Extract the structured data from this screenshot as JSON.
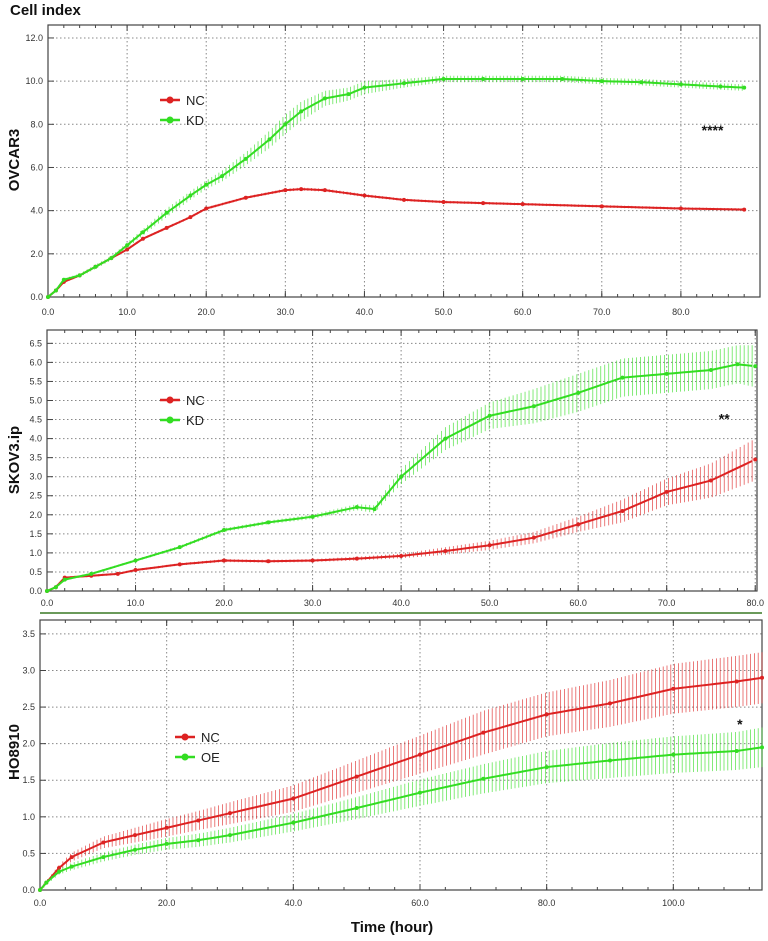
{
  "chart_data": {
    "type": "line",
    "title": "Cell index",
    "xlabel": "Time (hour)",
    "colors": {
      "NC": "#dd2222",
      "green": "#33dd22",
      "grid": "#888888",
      "separator": "#6a9a5a"
    },
    "grid": true,
    "legend_position": "top-left",
    "panels": [
      {
        "ylabel": "OVCAR3",
        "xlim": [
          0,
          90
        ],
        "ylim": [
          0,
          12.6
        ],
        "xticks": [
          "0.0",
          "10.0",
          "20.0",
          "30.0",
          "40.0",
          "50.0",
          "60.0",
          "70.0",
          "80.0"
        ],
        "xtick_values": [
          0,
          10,
          20,
          30,
          40,
          50,
          60,
          70,
          80
        ],
        "yticks": [
          "0.0",
          "2.0",
          "4.0",
          "6.0",
          "8.0",
          "10.0",
          "12.0"
        ],
        "ytick_values": [
          0,
          2,
          4,
          6,
          8,
          10,
          12
        ],
        "annotation": {
          "text": "****",
          "x": 84,
          "y": 7.5
        },
        "series": [
          {
            "name": "NC",
            "color": "#dd2222",
            "x": [
              0,
              1,
              2,
              4,
              6,
              8,
              10,
              12,
              15,
              18,
              20,
              25,
              30,
              32,
              35,
              40,
              45,
              50,
              55,
              60,
              70,
              80,
              88
            ],
            "y": [
              0,
              0.3,
              0.7,
              1.0,
              1.4,
              1.8,
              2.2,
              2.7,
              3.2,
              3.7,
              4.1,
              4.6,
              4.95,
              5.0,
              4.95,
              4.7,
              4.5,
              4.4,
              4.35,
              4.3,
              4.2,
              4.1,
              4.05
            ],
            "err": [
              0.02,
              0.05,
              0.05,
              0.05,
              0.05,
              0.05,
              0.05,
              0.05,
              0.06,
              0.06,
              0.06,
              0.06,
              0.07,
              0.07,
              0.07,
              0.07,
              0.06,
              0.06,
              0.06,
              0.06,
              0.06,
              0.06,
              0.06
            ]
          },
          {
            "name": "KD",
            "color": "#33dd22",
            "x": [
              0,
              1,
              2,
              4,
              6,
              8,
              10,
              12,
              15,
              18,
              20,
              22,
              25,
              28,
              30,
              32,
              35,
              38,
              40,
              45,
              50,
              55,
              60,
              65,
              70,
              75,
              80,
              85,
              88
            ],
            "y": [
              0,
              0.3,
              0.8,
              1.0,
              1.4,
              1.8,
              2.4,
              3.0,
              3.9,
              4.7,
              5.2,
              5.6,
              6.4,
              7.3,
              8.0,
              8.6,
              9.2,
              9.4,
              9.7,
              9.9,
              10.1,
              10.1,
              10.1,
              10.1,
              10.0,
              9.95,
              9.85,
              9.75,
              9.7
            ],
            "err": [
              0.02,
              0.05,
              0.06,
              0.08,
              0.1,
              0.1,
              0.12,
              0.15,
              0.2,
              0.2,
              0.2,
              0.25,
              0.3,
              0.4,
              0.45,
              0.45,
              0.35,
              0.3,
              0.3,
              0.2,
              0.15,
              0.15,
              0.15,
              0.15,
              0.15,
              0.15,
              0.15,
              0.15,
              0.15
            ]
          }
        ]
      },
      {
        "ylabel": "SKOV3.ip",
        "xlim": [
          0,
          80.2
        ],
        "ylim": [
          0,
          6.85
        ],
        "xticks": [
          "0.0",
          "10.0",
          "20.0",
          "30.0",
          "40.0",
          "50.0",
          "60.0",
          "70.0",
          "80.0"
        ],
        "xtick_values": [
          0,
          10,
          20,
          30,
          40,
          50,
          60,
          70,
          80
        ],
        "yticks": [
          "0.0",
          "0.5",
          "1.0",
          "1.5",
          "2.0",
          "2.5",
          "3.0",
          "3.5",
          "4.0",
          "4.5",
          "5.0",
          "5.5",
          "6.0",
          "6.5"
        ],
        "ytick_values": [
          0,
          0.5,
          1,
          1.5,
          2,
          2.5,
          3,
          3.5,
          4,
          4.5,
          5,
          5.5,
          6,
          6.5
        ],
        "annotation": {
          "text": "**",
          "x": 76.5,
          "y": 4.4
        },
        "series": [
          {
            "name": "NC",
            "color": "#dd2222",
            "x": [
              0,
              1,
              2,
              5,
              8,
              10,
              15,
              20,
              25,
              30,
              35,
              40,
              45,
              50,
              55,
              60,
              65,
              70,
              75,
              80
            ],
            "y": [
              0,
              0.1,
              0.35,
              0.4,
              0.45,
              0.55,
              0.7,
              0.8,
              0.78,
              0.8,
              0.85,
              0.92,
              1.05,
              1.2,
              1.4,
              1.75,
              2.1,
              2.6,
              2.9,
              3.45
            ],
            "err": [
              0.02,
              0.03,
              0.03,
              0.03,
              0.03,
              0.03,
              0.03,
              0.04,
              0.04,
              0.04,
              0.05,
              0.06,
              0.1,
              0.12,
              0.15,
              0.2,
              0.3,
              0.35,
              0.45,
              0.55
            ]
          },
          {
            "name": "KD",
            "color": "#33dd22",
            "x": [
              0,
              1,
              2,
              5,
              10,
              15,
              20,
              25,
              30,
              35,
              37,
              40,
              45,
              50,
              55,
              60,
              65,
              70,
              75,
              78,
              80
            ],
            "y": [
              0,
              0.1,
              0.3,
              0.45,
              0.8,
              1.15,
              1.6,
              1.8,
              1.95,
              2.2,
              2.15,
              3.0,
              4.0,
              4.6,
              4.85,
              5.2,
              5.6,
              5.7,
              5.8,
              5.95,
              5.9
            ],
            "err": [
              0.02,
              0.03,
              0.03,
              0.03,
              0.03,
              0.04,
              0.05,
              0.05,
              0.06,
              0.08,
              0.1,
              0.2,
              0.3,
              0.35,
              0.45,
              0.5,
              0.5,
              0.5,
              0.5,
              0.5,
              0.55
            ]
          }
        ]
      },
      {
        "ylabel": "HO8910",
        "xlim": [
          0,
          114
        ],
        "ylim": [
          0,
          3.69
        ],
        "xticks": [
          "0.0",
          "20.0",
          "40.0",
          "60.0",
          "80.0",
          "100.0"
        ],
        "xtick_values": [
          0,
          20,
          40,
          60,
          80,
          100
        ],
        "yticks": [
          "0.0",
          "0.5",
          "1.0",
          "1.5",
          "2.0",
          "2.5",
          "3.0",
          "3.5"
        ],
        "ytick_values": [
          0,
          0.5,
          1,
          1.5,
          2,
          2.5,
          3,
          3.5
        ],
        "annotation": {
          "text": "*",
          "x": 110.5,
          "y": 2.2
        },
        "series": [
          {
            "name": "NC",
            "color": "#dd2222",
            "x": [
              0,
              1,
              3,
              5,
              10,
              15,
              20,
              25,
              30,
              40,
              50,
              60,
              70,
              80,
              90,
              100,
              110,
              114
            ],
            "y": [
              0,
              0.1,
              0.3,
              0.45,
              0.65,
              0.75,
              0.85,
              0.95,
              1.05,
              1.25,
              1.55,
              1.85,
              2.15,
              2.4,
              2.55,
              2.75,
              2.85,
              2.9
            ],
            "err": [
              0.02,
              0.03,
              0.04,
              0.06,
              0.08,
              0.1,
              0.12,
              0.13,
              0.15,
              0.18,
              0.22,
              0.26,
              0.3,
              0.3,
              0.32,
              0.34,
              0.35,
              0.35
            ]
          },
          {
            "name": "OE",
            "color": "#33dd22",
            "x": [
              0,
              1,
              3,
              5,
              10,
              15,
              20,
              25,
              30,
              40,
              50,
              60,
              70,
              80,
              90,
              100,
              110,
              114
            ],
            "y": [
              0,
              0.1,
              0.25,
              0.32,
              0.45,
              0.55,
              0.63,
              0.68,
              0.75,
              0.92,
              1.12,
              1.33,
              1.52,
              1.68,
              1.77,
              1.85,
              1.9,
              1.95
            ],
            "err": [
              0.02,
              0.03,
              0.04,
              0.05,
              0.06,
              0.07,
              0.08,
              0.09,
              0.1,
              0.12,
              0.15,
              0.18,
              0.2,
              0.22,
              0.24,
              0.25,
              0.26,
              0.27
            ]
          }
        ]
      }
    ]
  }
}
